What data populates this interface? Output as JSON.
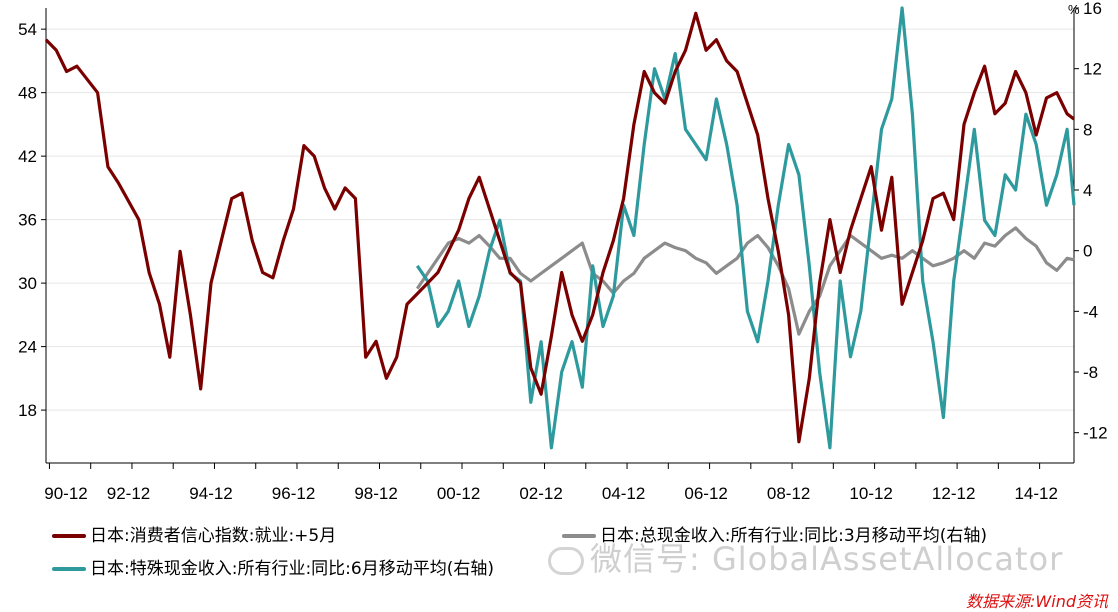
{
  "chart_data": {
    "type": "line",
    "x_tick_labels": [
      "90-12",
      "92-12",
      "94-12",
      "96-12",
      "98-12",
      "00-12",
      "02-12",
      "04-12",
      "06-12",
      "08-12",
      "10-12",
      "12-12",
      "14-12"
    ],
    "x_range": [
      "1990-12",
      "2015-11"
    ],
    "y_left": {
      "ticks": [
        "54",
        "48",
        "42",
        "36",
        "30",
        "24",
        "18"
      ],
      "range": [
        13,
        56
      ]
    },
    "y_right": {
      "unit": "%",
      "ticks": [
        "16",
        "12",
        "8",
        "4",
        "0",
        "-4",
        "-8",
        "-12"
      ],
      "range": [
        -14,
        16
      ]
    },
    "grid": true,
    "series": [
      {
        "name": "日本:消费者信心指数:就业:+5月",
        "axis": "left",
        "color": "#7a0000",
        "points": [
          [
            "1990-12",
            53
          ],
          [
            "1991-03",
            52
          ],
          [
            "1991-06",
            50
          ],
          [
            "1991-09",
            50.5
          ],
          [
            "1992-03",
            48
          ],
          [
            "1992-06",
            41
          ],
          [
            "1992-09",
            39.5
          ],
          [
            "1993-03",
            36
          ],
          [
            "1993-06",
            31
          ],
          [
            "1993-09",
            28
          ],
          [
            "1993-12",
            23
          ],
          [
            "1994-03",
            33
          ],
          [
            "1994-06",
            27
          ],
          [
            "1994-09",
            20
          ],
          [
            "1994-12",
            30
          ],
          [
            "1995-03",
            34
          ],
          [
            "1995-06",
            38
          ],
          [
            "1995-09",
            38.5
          ],
          [
            "1995-12",
            34
          ],
          [
            "1996-03",
            31
          ],
          [
            "1996-06",
            30.5
          ],
          [
            "1996-09",
            34
          ],
          [
            "1996-12",
            37
          ],
          [
            "1997-03",
            43
          ],
          [
            "1997-06",
            42
          ],
          [
            "1997-09",
            39
          ],
          [
            "1997-12",
            37
          ],
          [
            "1998-03",
            39
          ],
          [
            "1998-06",
            38
          ],
          [
            "1998-09",
            23
          ],
          [
            "1998-12",
            24.5
          ],
          [
            "1999-03",
            21
          ],
          [
            "1999-06",
            23
          ],
          [
            "1999-09",
            28
          ],
          [
            "1999-12",
            29
          ],
          [
            "2000-03",
            30
          ],
          [
            "2000-06",
            31
          ],
          [
            "2000-09",
            33
          ],
          [
            "2000-12",
            35
          ],
          [
            "2001-03",
            38
          ],
          [
            "2001-06",
            40
          ],
          [
            "2001-09",
            37
          ],
          [
            "2001-12",
            34
          ],
          [
            "2002-03",
            31
          ],
          [
            "2002-06",
            30
          ],
          [
            "2002-09",
            22
          ],
          [
            "2002-12",
            19.5
          ],
          [
            "2003-03",
            25
          ],
          [
            "2003-06",
            31
          ],
          [
            "2003-09",
            27
          ],
          [
            "2003-12",
            24.5
          ],
          [
            "2004-03",
            27
          ],
          [
            "2004-06",
            31
          ],
          [
            "2004-09",
            34
          ],
          [
            "2004-12",
            38
          ],
          [
            "2005-03",
            45
          ],
          [
            "2005-06",
            50
          ],
          [
            "2005-09",
            48
          ],
          [
            "2005-12",
            47
          ],
          [
            "2006-03",
            50
          ],
          [
            "2006-06",
            52
          ],
          [
            "2006-09",
            55.5
          ],
          [
            "2006-12",
            52
          ],
          [
            "2007-03",
            53
          ],
          [
            "2007-06",
            51
          ],
          [
            "2007-09",
            50
          ],
          [
            "2007-12",
            47
          ],
          [
            "2008-03",
            44
          ],
          [
            "2008-06",
            38
          ],
          [
            "2008-09",
            33
          ],
          [
            "2008-12",
            27
          ],
          [
            "2009-03",
            15
          ],
          [
            "2009-06",
            21
          ],
          [
            "2009-09",
            30
          ],
          [
            "2009-12",
            36
          ],
          [
            "2010-03",
            31
          ],
          [
            "2010-06",
            35
          ],
          [
            "2010-09",
            38
          ],
          [
            "2010-12",
            41
          ],
          [
            "2011-03",
            35
          ],
          [
            "2011-06",
            40
          ],
          [
            "2011-09",
            28
          ],
          [
            "2011-12",
            31
          ],
          [
            "2012-03",
            34
          ],
          [
            "2012-06",
            38
          ],
          [
            "2012-09",
            38.5
          ],
          [
            "2012-12",
            36
          ],
          [
            "2013-03",
            45
          ],
          [
            "2013-06",
            48
          ],
          [
            "2013-09",
            50.5
          ],
          [
            "2013-12",
            46
          ],
          [
            "2014-03",
            47
          ],
          [
            "2014-06",
            50
          ],
          [
            "2014-09",
            48
          ],
          [
            "2014-12",
            44
          ],
          [
            "2015-03",
            47.5
          ],
          [
            "2015-06",
            48
          ],
          [
            "2015-09",
            46
          ],
          [
            "2015-11",
            45.5
          ]
        ]
      },
      {
        "name": "日本:总现金收入:所有行业:同比:3月移动平均(右轴)",
        "axis": "right",
        "color": "#8c8c8c",
        "points": [
          [
            "1999-12",
            -2.5
          ],
          [
            "2000-03",
            -1.5
          ],
          [
            "2000-06",
            -0.5
          ],
          [
            "2000-09",
            0.5
          ],
          [
            "2000-12",
            0.8
          ],
          [
            "2001-03",
            0.5
          ],
          [
            "2001-06",
            1
          ],
          [
            "2001-09",
            0.3
          ],
          [
            "2001-12",
            -0.5
          ],
          [
            "2002-03",
            -0.5
          ],
          [
            "2002-06",
            -1.5
          ],
          [
            "2002-09",
            -2
          ],
          [
            "2002-12",
            -1.5
          ],
          [
            "2003-03",
            -1
          ],
          [
            "2003-06",
            -0.5
          ],
          [
            "2003-09",
            0
          ],
          [
            "2003-12",
            0.5
          ],
          [
            "2004-03",
            -1.5
          ],
          [
            "2004-06",
            -2
          ],
          [
            "2004-09",
            -2.8
          ],
          [
            "2004-12",
            -2
          ],
          [
            "2005-03",
            -1.5
          ],
          [
            "2005-06",
            -0.5
          ],
          [
            "2005-09",
            0
          ],
          [
            "2005-12",
            0.5
          ],
          [
            "2006-03",
            0.2
          ],
          [
            "2006-06",
            0
          ],
          [
            "2006-09",
            -0.5
          ],
          [
            "2006-12",
            -0.8
          ],
          [
            "2007-03",
            -1.5
          ],
          [
            "2007-06",
            -1
          ],
          [
            "2007-09",
            -0.5
          ],
          [
            "2007-12",
            0.5
          ],
          [
            "2008-03",
            1
          ],
          [
            "2008-06",
            0.2
          ],
          [
            "2008-09",
            -1
          ],
          [
            "2008-12",
            -2.5
          ],
          [
            "2009-03",
            -5.5
          ],
          [
            "2009-06",
            -4
          ],
          [
            "2009-09",
            -3
          ],
          [
            "2009-12",
            -1
          ],
          [
            "2010-03",
            0
          ],
          [
            "2010-06",
            1
          ],
          [
            "2010-09",
            0.5
          ],
          [
            "2010-12",
            0
          ],
          [
            "2011-03",
            -0.5
          ],
          [
            "2011-06",
            -0.3
          ],
          [
            "2011-09",
            -0.5
          ],
          [
            "2011-12",
            0
          ],
          [
            "2012-03",
            -0.5
          ],
          [
            "2012-06",
            -1
          ],
          [
            "2012-09",
            -0.8
          ],
          [
            "2012-12",
            -0.5
          ],
          [
            "2013-03",
            0
          ],
          [
            "2013-06",
            -0.5
          ],
          [
            "2013-09",
            0.5
          ],
          [
            "2013-12",
            0.3
          ],
          [
            "2014-03",
            1
          ],
          [
            "2014-06",
            1.5
          ],
          [
            "2014-09",
            0.8
          ],
          [
            "2014-12",
            0.3
          ],
          [
            "2015-03",
            -0.8
          ],
          [
            "2015-06",
            -1.3
          ],
          [
            "2015-09",
            -0.5
          ],
          [
            "2015-11",
            -0.6
          ]
        ]
      },
      {
        "name": "日本:特殊现金收入:所有行业:同比:6月移动平均(右轴)",
        "axis": "right",
        "color": "#2e9a9e",
        "points": [
          [
            "1999-12",
            -1
          ],
          [
            "2000-03",
            -2
          ],
          [
            "2000-06",
            -5
          ],
          [
            "2000-09",
            -4
          ],
          [
            "2000-12",
            -2
          ],
          [
            "2001-03",
            -5
          ],
          [
            "2001-06",
            -3
          ],
          [
            "2001-09",
            0
          ],
          [
            "2001-12",
            2
          ],
          [
            "2002-03",
            -1.5
          ],
          [
            "2002-06",
            -2
          ],
          [
            "2002-09",
            -10
          ],
          [
            "2002-12",
            -6
          ],
          [
            "2003-03",
            -13
          ],
          [
            "2003-06",
            -8
          ],
          [
            "2003-09",
            -6
          ],
          [
            "2003-12",
            -9
          ],
          [
            "2004-03",
            -1
          ],
          [
            "2004-06",
            -5
          ],
          [
            "2004-09",
            -3
          ],
          [
            "2004-12",
            3
          ],
          [
            "2005-03",
            1
          ],
          [
            "2005-06",
            7
          ],
          [
            "2005-09",
            12
          ],
          [
            "2005-12",
            10
          ],
          [
            "2006-03",
            13
          ],
          [
            "2006-06",
            8
          ],
          [
            "2006-09",
            7
          ],
          [
            "2006-12",
            6
          ],
          [
            "2007-03",
            10
          ],
          [
            "2007-06",
            7
          ],
          [
            "2007-09",
            3
          ],
          [
            "2007-12",
            -4
          ],
          [
            "2008-03",
            -6
          ],
          [
            "2008-06",
            -2
          ],
          [
            "2008-09",
            3
          ],
          [
            "2008-12",
            7
          ],
          [
            "2009-03",
            5
          ],
          [
            "2009-06",
            -1
          ],
          [
            "2009-09",
            -8
          ],
          [
            "2009-12",
            -13
          ],
          [
            "2010-03",
            -2
          ],
          [
            "2010-06",
            -7
          ],
          [
            "2010-09",
            -4
          ],
          [
            "2010-12",
            2
          ],
          [
            "2011-03",
            8
          ],
          [
            "2011-06",
            10
          ],
          [
            "2011-09",
            16
          ],
          [
            "2011-12",
            9
          ],
          [
            "2012-03",
            -2
          ],
          [
            "2012-06",
            -6
          ],
          [
            "2012-09",
            -11
          ],
          [
            "2012-12",
            -2
          ],
          [
            "2013-03",
            3
          ],
          [
            "2013-06",
            8
          ],
          [
            "2013-09",
            2
          ],
          [
            "2013-12",
            1
          ],
          [
            "2014-03",
            5
          ],
          [
            "2014-06",
            4
          ],
          [
            "2014-09",
            9
          ],
          [
            "2014-12",
            7
          ],
          [
            "2015-03",
            3
          ],
          [
            "2015-06",
            5
          ],
          [
            "2015-09",
            8
          ],
          [
            "2015-11",
            3
          ]
        ]
      }
    ]
  },
  "legend": {
    "s1": "日本:消费者信心指数:就业:+5月",
    "s2": "日本:总现金收入:所有行业:同比:3月移动平均(右轴)",
    "s3": "日本:特殊现金收入:所有行业:同比:6月移动平均(右轴)"
  },
  "watermark": "微信号: GlobalAssetAllocator",
  "source": "数据来源:Wind资讯"
}
